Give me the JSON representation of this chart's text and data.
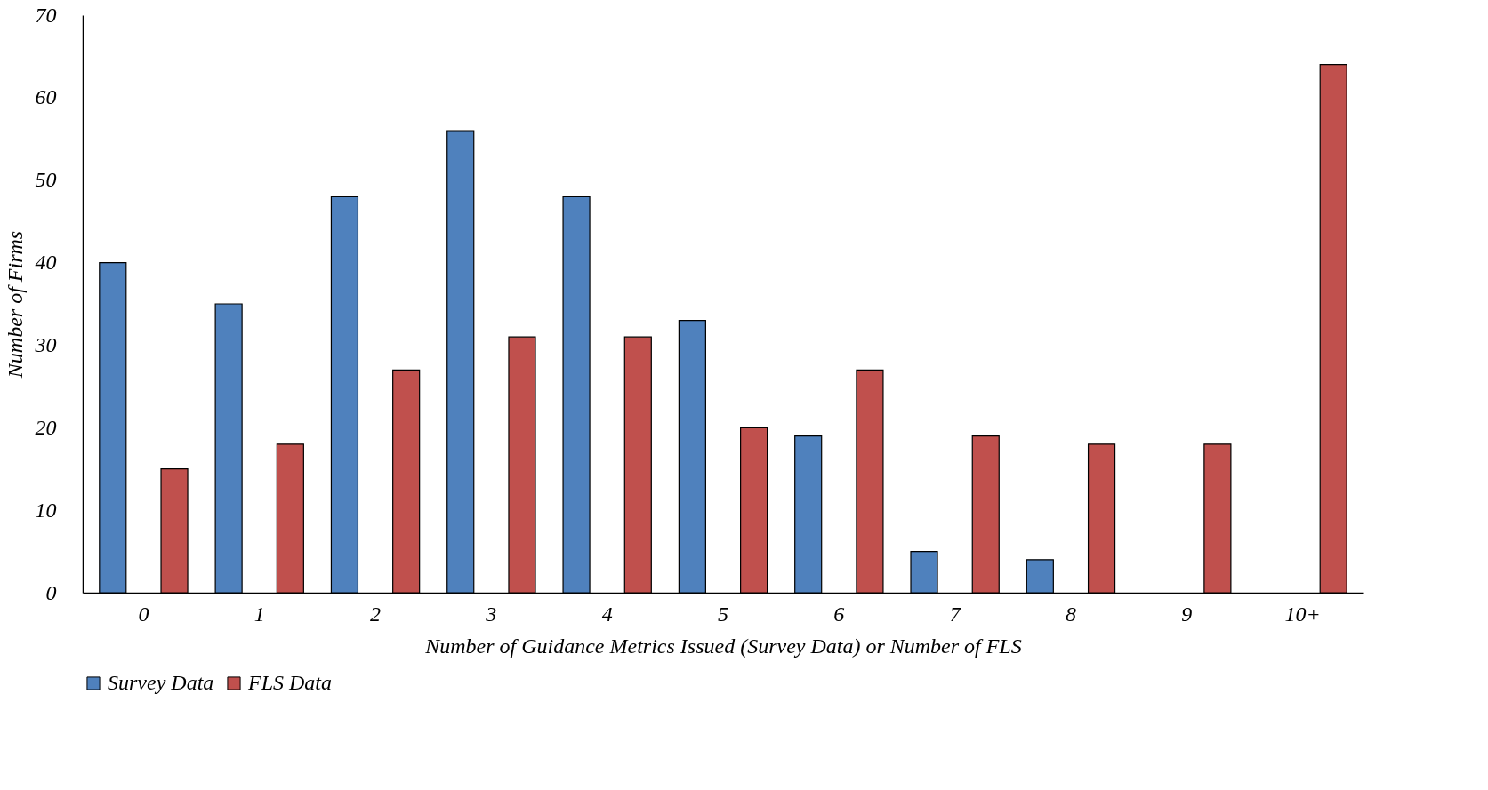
{
  "chart_data": {
    "type": "bar",
    "xlabel": "Number of Guidance Metrics Issued (Survey Data) or Number of FLS",
    "ylabel": "Number of Firms",
    "categories": [
      "0",
      "1",
      "2",
      "3",
      "4",
      "5",
      "6",
      "7",
      "8",
      "9",
      "10+"
    ],
    "series": [
      {
        "name": "Survey Data",
        "color": "#4f81bd",
        "values": [
          40,
          35,
          48,
          56,
          48,
          33,
          19,
          5,
          4,
          null,
          null
        ]
      },
      {
        "name": "FLS Data",
        "color": "#c0504d",
        "values": [
          15,
          18,
          27,
          31,
          31,
          20,
          27,
          19,
          18,
          18,
          64
        ]
      }
    ],
    "ylim": [
      0,
      70
    ],
    "yticks": [
      0,
      10,
      20,
      30,
      40,
      50,
      60,
      70
    ],
    "grid": false,
    "legend": "bottom"
  }
}
